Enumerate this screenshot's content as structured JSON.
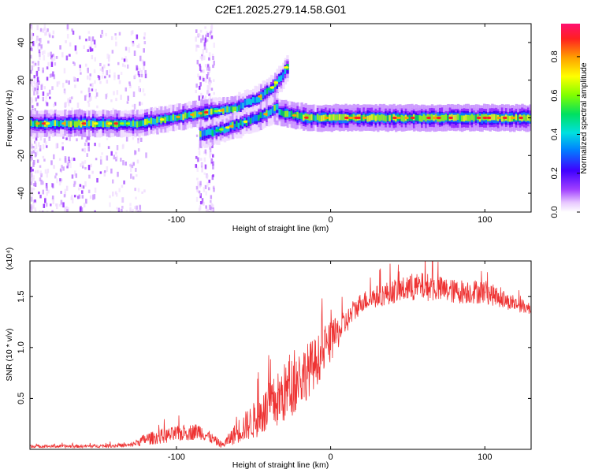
{
  "title": "C2E1.2025.279.14.58.G01",
  "chart_data": [
    {
      "type": "heatmap",
      "panel": "spectrogram",
      "xlabel": "Height of straight line (km)",
      "ylabel": "Frequency (Hz)",
      "xlim": [
        -195,
        130
      ],
      "ylim": [
        -50,
        50
      ],
      "xticks": [
        -100,
        0,
        100
      ],
      "xtick_labels": [
        "-100",
        "0",
        "100"
      ],
      "yticks": [
        -40,
        -20,
        0,
        20,
        40
      ],
      "ytick_labels": [
        "-40",
        "-20",
        "0",
        "20",
        "40"
      ],
      "colorbar": {
        "label": "Normalized spectral amplitude",
        "range": [
          0,
          0.97
        ],
        "ticks": [
          0.0,
          0.2,
          0.4,
          0.6,
          0.8
        ],
        "tick_labels": [
          "0.0",
          "0.2",
          "0.4",
          "0.6",
          "0.8"
        ]
      },
      "ridges": [
        {
          "name": "main-ridge",
          "points": [
            [
              -195,
              -3
            ],
            [
              -150,
              -3
            ],
            [
              -125,
              -3
            ],
            [
              -110,
              -1
            ],
            [
              -95,
              1
            ],
            [
              -80,
              3
            ],
            [
              -60,
              5
            ],
            [
              -40,
              4
            ],
            [
              -28,
              2
            ],
            [
              -15,
              0
            ],
            [
              0,
              0
            ],
            [
              40,
              0
            ],
            [
              130,
              0
            ]
          ]
        },
        {
          "name": "upper-branch",
          "points": [
            [
              -60,
              6
            ],
            [
              -48,
              10
            ],
            [
              -38,
              16
            ],
            [
              -32,
              22
            ],
            [
              -28,
              28
            ]
          ]
        },
        {
          "name": "lower-branch",
          "points": [
            [
              -85,
              -9
            ],
            [
              -70,
              -6
            ],
            [
              -55,
              -2
            ],
            [
              -42,
              2
            ],
            [
              -35,
              6
            ]
          ]
        }
      ]
    },
    {
      "type": "line",
      "panel": "snr",
      "xlabel": "Height of straight line (km)",
      "ylabel": "SNR (10 * v/v)",
      "yscale_label": "(x10⁴)",
      "xlim": [
        -195,
        130
      ],
      "ylim": [
        0,
        1.85
      ],
      "xticks": [
        -100,
        0,
        100
      ],
      "xtick_labels": [
        "-100",
        "0",
        "100"
      ],
      "yticks": [
        0.5,
        1.0,
        1.5
      ],
      "ytick_labels": [
        "0.5",
        "1.0",
        "1.5"
      ],
      "color": "#ee3333",
      "envelope": {
        "x": [
          -195,
          -160,
          -130,
          -120,
          -100,
          -85,
          -70,
          -60,
          -50,
          -40,
          -30,
          -20,
          -10,
          0,
          10,
          20,
          40,
          60,
          80,
          100,
          115,
          130
        ],
        "mean": [
          0.03,
          0.03,
          0.04,
          0.1,
          0.15,
          0.18,
          0.04,
          0.18,
          0.28,
          0.4,
          0.55,
          0.7,
          0.85,
          1.05,
          1.25,
          1.45,
          1.55,
          1.6,
          1.55,
          1.55,
          1.45,
          1.38
        ],
        "noise": [
          0.015,
          0.015,
          0.02,
          0.06,
          0.08,
          0.08,
          0.03,
          0.12,
          0.18,
          0.25,
          0.3,
          0.3,
          0.25,
          0.2,
          0.12,
          0.1,
          0.12,
          0.14,
          0.12,
          0.12,
          0.08,
          0.06
        ]
      }
    }
  ]
}
